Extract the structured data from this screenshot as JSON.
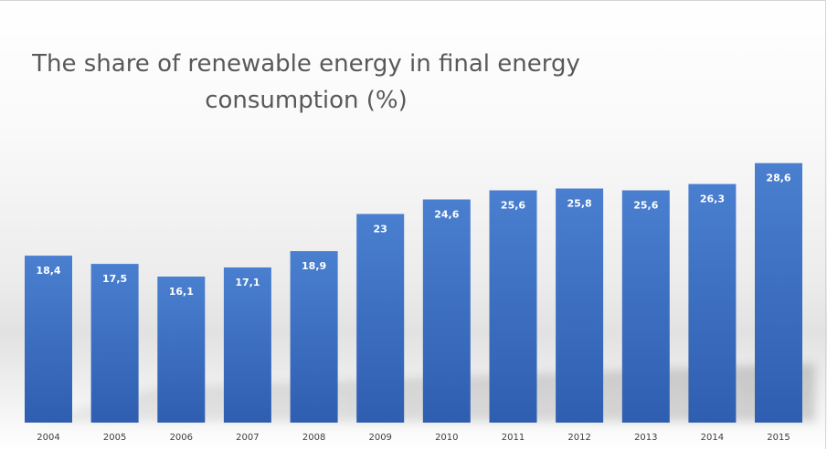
{
  "chart_data": {
    "type": "bar",
    "title": "The share of renewable energy in final energy consumption (%)",
    "categories": [
      "2004",
      "2005",
      "2006",
      "2007",
      "2008",
      "2009",
      "2010",
      "2011",
      "2012",
      "2013",
      "2014",
      "2015"
    ],
    "values": [
      18.4,
      17.5,
      16.1,
      17.1,
      18.9,
      23,
      24.6,
      25.6,
      25.8,
      25.6,
      26.3,
      28.6
    ],
    "value_labels": [
      "18,4",
      "17,5",
      "16,1",
      "17,1",
      "18,9",
      "23",
      "24,6",
      "25,6",
      "25,8",
      "25,6",
      "26,3",
      "28,6"
    ],
    "xlabel": "",
    "ylabel": "",
    "ylim": [
      0,
      29.5
    ],
    "grid": false,
    "legend": "none",
    "colors": {
      "bar_top": "#4a7fd0",
      "bar_bottom": "#2f5eb0",
      "title": "#595959",
      "tick_text": "#404040",
      "data_label": "#ffffff"
    }
  }
}
